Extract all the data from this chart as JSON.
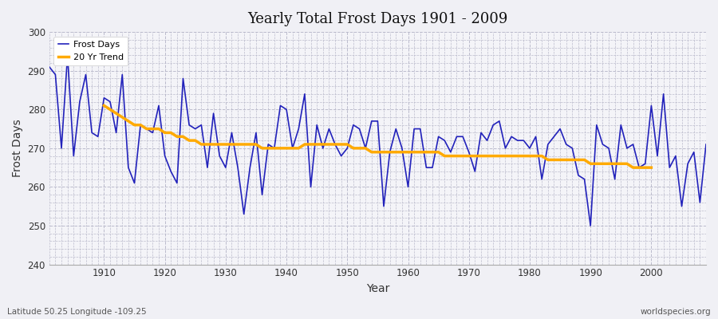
{
  "title": "Yearly Total Frost Days 1901 - 2009",
  "xlabel": "Year",
  "ylabel": "Frost Days",
  "footnote_left": "Latitude 50.25 Longitude -109.25",
  "footnote_right": "worldspecies.org",
  "ylim": [
    240,
    300
  ],
  "xlim": [
    1901,
    2009
  ],
  "yticks": [
    240,
    250,
    260,
    270,
    280,
    290,
    300
  ],
  "xticks": [
    1910,
    1920,
    1930,
    1940,
    1950,
    1960,
    1970,
    1980,
    1990,
    2000
  ],
  "background_color": "#f0f0f5",
  "plot_bg_color": "#f4f4f8",
  "grid_color": "#bbbbcc",
  "line_color": "#2222bb",
  "trend_color": "#ffaa00",
  "legend_labels": [
    "Frost Days",
    "20 Yr Trend"
  ],
  "years": [
    1901,
    1902,
    1903,
    1904,
    1905,
    1906,
    1907,
    1908,
    1909,
    1910,
    1911,
    1912,
    1913,
    1914,
    1915,
    1916,
    1917,
    1918,
    1919,
    1920,
    1921,
    1922,
    1923,
    1924,
    1925,
    1926,
    1927,
    1928,
    1929,
    1930,
    1931,
    1932,
    1933,
    1934,
    1935,
    1936,
    1937,
    1938,
    1939,
    1940,
    1941,
    1942,
    1943,
    1944,
    1945,
    1946,
    1947,
    1948,
    1949,
    1950,
    1951,
    1952,
    1953,
    1954,
    1955,
    1956,
    1957,
    1958,
    1959,
    1960,
    1961,
    1962,
    1963,
    1964,
    1965,
    1966,
    1967,
    1968,
    1969,
    1970,
    1971,
    1972,
    1973,
    1974,
    1975,
    1976,
    1977,
    1978,
    1979,
    1980,
    1981,
    1982,
    1983,
    1984,
    1985,
    1986,
    1987,
    1988,
    1989,
    1990,
    1991,
    1992,
    1993,
    1994,
    1995,
    1996,
    1997,
    1998,
    1999,
    2000,
    2001,
    2002,
    2003,
    2004,
    2005,
    2006,
    2007,
    2008,
    2009
  ],
  "frost_days": [
    291,
    289,
    270,
    294,
    268,
    282,
    289,
    274,
    273,
    283,
    282,
    274,
    289,
    265,
    261,
    276,
    275,
    274,
    281,
    268,
    264,
    261,
    288,
    276,
    275,
    276,
    265,
    279,
    268,
    265,
    274,
    265,
    253,
    265,
    274,
    258,
    271,
    270,
    281,
    280,
    270,
    275,
    284,
    260,
    276,
    270,
    275,
    271,
    268,
    270,
    276,
    275,
    270,
    277,
    277,
    255,
    269,
    275,
    270,
    260,
    275,
    275,
    265,
    265,
    273,
    272,
    269,
    273,
    273,
    269,
    264,
    274,
    272,
    276,
    277,
    270,
    273,
    272,
    272,
    270,
    273,
    262,
    271,
    273,
    275,
    271,
    270,
    263,
    262,
    250,
    276,
    271,
    270,
    262,
    276,
    270,
    271,
    265,
    266,
    281,
    268,
    284,
    265,
    268,
    255,
    266,
    269,
    256,
    271
  ],
  "trend_years": [
    1910,
    1911,
    1912,
    1913,
    1914,
    1915,
    1916,
    1917,
    1918,
    1919,
    1920,
    1921,
    1922,
    1923,
    1924,
    1925,
    1926,
    1927,
    1928,
    1929,
    1930,
    1931,
    1932,
    1933,
    1934,
    1935,
    1936,
    1937,
    1938,
    1939,
    1940,
    1941,
    1942,
    1943,
    1944,
    1945,
    1946,
    1947,
    1948,
    1949,
    1950,
    1951,
    1952,
    1953,
    1954,
    1955,
    1956,
    1957,
    1958,
    1959,
    1960,
    1961,
    1962,
    1963,
    1964,
    1965,
    1966,
    1967,
    1968,
    1969,
    1970,
    1971,
    1972,
    1973,
    1974,
    1975,
    1976,
    1977,
    1978,
    1979,
    1980,
    1981,
    1982,
    1983,
    1984,
    1985,
    1986,
    1987,
    1988,
    1989,
    1990,
    1991,
    1992,
    1993,
    1994,
    1995,
    1996,
    1997,
    1998,
    1999,
    2000
  ],
  "trend_values": [
    281,
    280,
    279,
    278,
    277,
    276,
    276,
    275,
    275,
    275,
    274,
    274,
    273,
    273,
    272,
    272,
    271,
    271,
    271,
    271,
    271,
    271,
    271,
    271,
    271,
    271,
    270,
    270,
    270,
    270,
    270,
    270,
    270,
    271,
    271,
    271,
    271,
    271,
    271,
    271,
    271,
    270,
    270,
    270,
    269,
    269,
    269,
    269,
    269,
    269,
    269,
    269,
    269,
    269,
    269,
    269,
    268,
    268,
    268,
    268,
    268,
    268,
    268,
    268,
    268,
    268,
    268,
    268,
    268,
    268,
    268,
    268,
    268,
    267,
    267,
    267,
    267,
    267,
    267,
    267,
    266,
    266,
    266,
    266,
    266,
    266,
    266,
    265,
    265,
    265,
    265
  ]
}
